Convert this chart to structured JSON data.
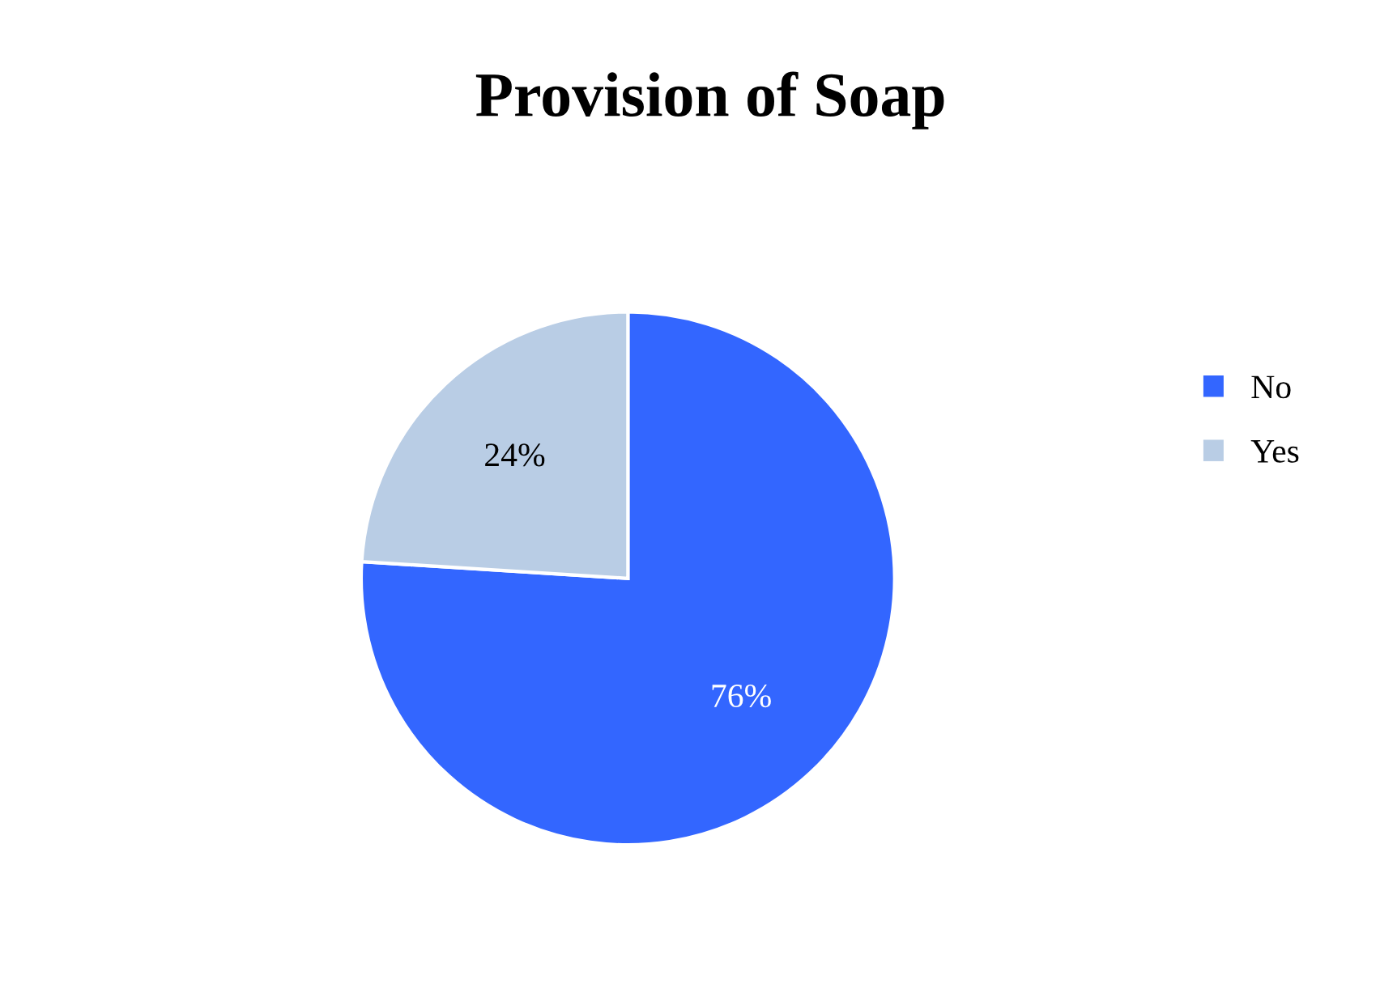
{
  "chart_data": {
    "type": "pie",
    "title": "Provision of Soap",
    "categories": [
      "No",
      "Yes"
    ],
    "values": [
      76,
      24
    ],
    "colors": [
      "#3366ff",
      "#b9cde5"
    ],
    "value_labels": [
      "76%",
      "24%"
    ],
    "legend": "right"
  }
}
